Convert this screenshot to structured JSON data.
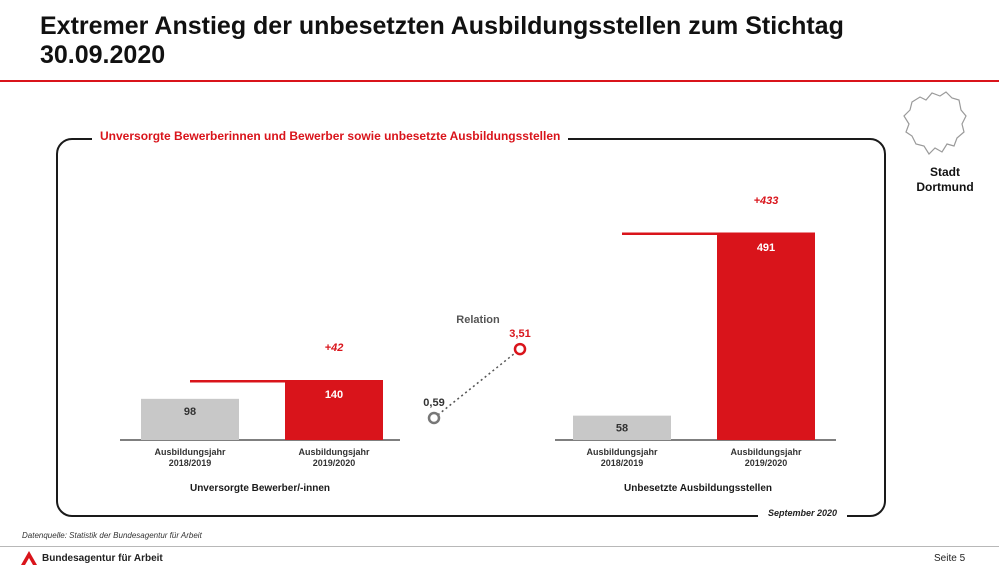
{
  "header": {
    "title": "Extremer Anstieg der unbesetzten Ausbildungsstellen zum Stichtag 30.09.2020"
  },
  "panel": {
    "title": "Unversorgte Bewerberinnen und Bewerber sowie unbesetzte Ausbildungsstellen",
    "date": "September 2020"
  },
  "region": {
    "name": "Stadt Dortmund"
  },
  "colors": {
    "accent": "#d9141b",
    "previous_bar": "#c8c8c8",
    "axis": "#555555"
  },
  "chart_data": [
    {
      "type": "bar",
      "group_label": "Unversorgte Bewerber/-innen",
      "categories": [
        "Ausbildungsjahr 2018/2019",
        "Ausbildungsjahr 2019/2020"
      ],
      "values": [
        98,
        140
      ],
      "value_labels": [
        "98",
        "140"
      ],
      "change_label": "+42"
    },
    {
      "type": "scatter",
      "title": "Relation",
      "points": [
        {
          "period": "Ausbildungsjahr 2018/2019",
          "value": 0.59,
          "label": "0,59"
        },
        {
          "period": "Ausbildungsjahr 2019/2020",
          "value": 3.51,
          "label": "3,51"
        }
      ]
    },
    {
      "type": "bar",
      "group_label": "Unbesetzte Ausbildungsstellen",
      "categories": [
        "Ausbildungsjahr 2018/2019",
        "Ausbildungsjahr 2019/2020"
      ],
      "values": [
        58,
        491
      ],
      "value_labels": [
        "58",
        "491"
      ],
      "change_label": "+433"
    }
  ],
  "footer": {
    "source": "Datenquelle: Statistik der Bundesagentur für Arbeit",
    "agency": "Bundesagentur für Arbeit",
    "page": "Seite 5"
  }
}
